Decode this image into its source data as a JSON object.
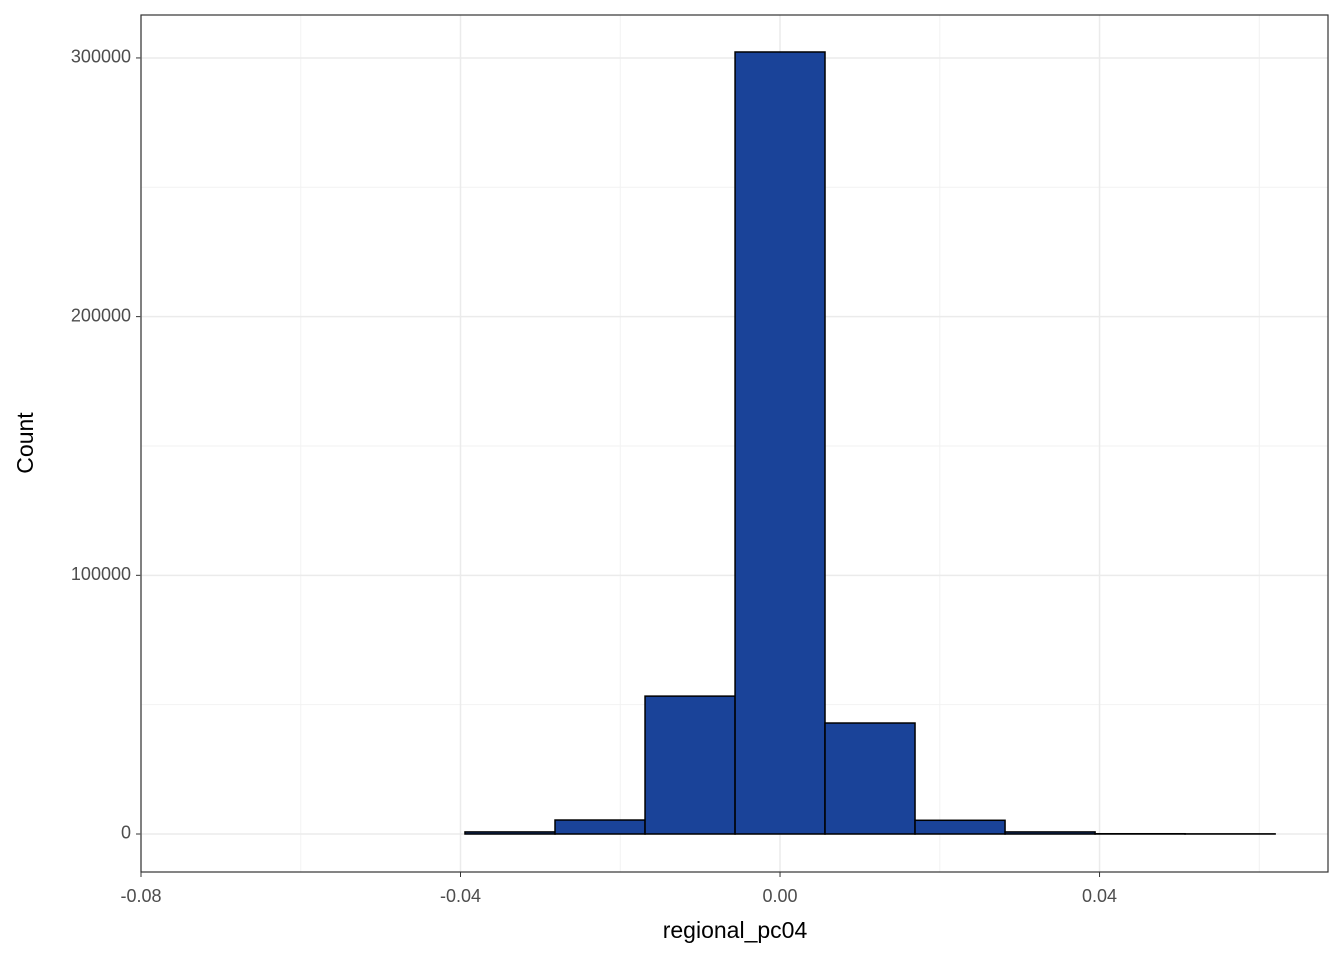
{
  "chart_data": {
    "type": "histogram",
    "x_label": "regional_pc04",
    "y_label": "Count",
    "bins": [
      -0.07324,
      -0.06198,
      -0.05071,
      -0.03944,
      -0.02817,
      -0.0169,
      -0.00563,
      0.00563,
      0.0169,
      0.02817,
      0.03944,
      0.05071,
      0.06198
    ],
    "values": [
      0,
      0,
      0,
      800,
      5400,
      53300,
      302300,
      42900,
      5300,
      800,
      100,
      50
    ],
    "color": "#1a4399",
    "edge_color": "#000000",
    "xlim": [
      -0.08,
      0.0686
    ],
    "xticks": [
      -0.08,
      -0.04,
      {
        "value": 0,
        "label": "0.00"
      },
      0.04
    ],
    "x_minor_ticks": [
      -0.06,
      -0.02,
      0.02,
      0.06
    ],
    "ylim": [
      -14690,
      316600
    ],
    "yticks": [
      0,
      100000,
      200000,
      300000
    ],
    "y_minor_ticks": [
      50000,
      150000,
      250000
    ],
    "grid": true
  }
}
